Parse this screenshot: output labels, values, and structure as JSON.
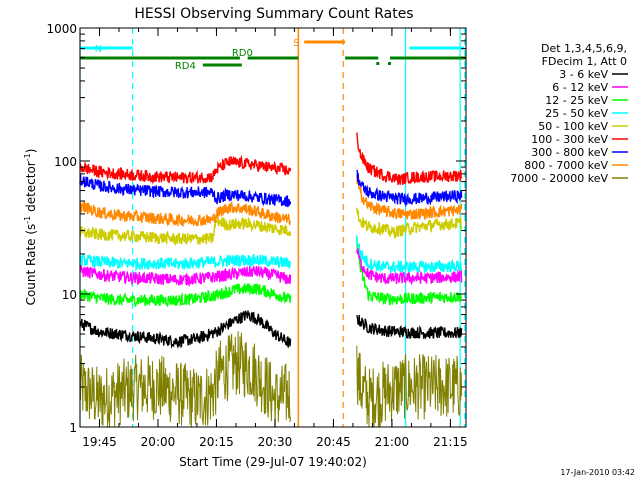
{
  "chart_data": {
    "type": "line",
    "title": "HESSI Observing Summary Count Rates",
    "xlabel": "Start Time (29-Jul-07 19:40:02)",
    "ylabel_main": "Count Rate (s",
    "ylabel_sup1": "-1",
    "ylabel_mid": " detector",
    "ylabel_sup2": "-1",
    "ylabel_end": ")",
    "y_scale": "log",
    "ylim": [
      1,
      1000
    ],
    "xlim_minutes": [
      0,
      99
    ],
    "x_ticks": [
      {
        "m": 5,
        "label": "19:45"
      },
      {
        "m": 20,
        "label": "20:00"
      },
      {
        "m": 35,
        "label": "20:15"
      },
      {
        "m": 50,
        "label": "20:30"
      },
      {
        "m": 65,
        "label": "20:45"
      },
      {
        "m": 80,
        "label": "21:00"
      },
      {
        "m": 95,
        "label": "21:15"
      }
    ],
    "y_ticks": [
      {
        "v": 1,
        "label": "1"
      },
      {
        "v": 10,
        "label": "10"
      },
      {
        "v": 100,
        "label": "100"
      },
      {
        "v": 1000,
        "label": "1000"
      }
    ],
    "legend": {
      "placement": "right",
      "header": [
        "Det 1,3,4,5,6,9,",
        "FDecim 1, Att 0"
      ]
    },
    "series": [
      {
        "name": "3 - 6 keV",
        "color": "#000000",
        "seg1": [
          [
            0,
            6
          ],
          [
            5,
            5.2
          ],
          [
            10,
            5
          ],
          [
            15,
            4.8
          ],
          [
            20,
            4.6
          ],
          [
            25,
            4.4
          ],
          [
            30,
            4.6
          ],
          [
            35,
            5.2
          ],
          [
            40,
            6.4
          ],
          [
            43,
            7
          ],
          [
            46,
            6.4
          ],
          [
            50,
            5
          ],
          [
            54,
            4.2
          ]
        ],
        "seg2": [
          [
            71,
            6.5
          ],
          [
            74,
            5.6
          ],
          [
            78,
            5.3
          ],
          [
            82,
            5.2
          ],
          [
            88,
            5.1
          ],
          [
            94,
            5.1
          ],
          [
            98,
            5.1
          ]
        ]
      },
      {
        "name": "6 - 12 keV",
        "color": "#ff00ff",
        "seg1": [
          [
            0,
            15
          ],
          [
            5,
            14
          ],
          [
            10,
            13.5
          ],
          [
            15,
            13.2
          ],
          [
            20,
            13
          ],
          [
            25,
            12.8
          ],
          [
            30,
            13
          ],
          [
            35,
            13.5
          ],
          [
            40,
            14.2
          ],
          [
            45,
            14.8
          ],
          [
            50,
            13.8
          ],
          [
            54,
            12.8
          ]
        ],
        "seg2": [
          [
            71,
            22
          ],
          [
            72,
            17
          ],
          [
            74,
            14
          ],
          [
            78,
            13
          ],
          [
            84,
            13.2
          ],
          [
            90,
            13.2
          ],
          [
            98,
            13.5
          ]
        ]
      },
      {
        "name": "12 - 25 keV",
        "color": "#00ff00",
        "seg1": [
          [
            0,
            10
          ],
          [
            5,
            9.3
          ],
          [
            10,
            9
          ],
          [
            15,
            9
          ],
          [
            20,
            9
          ],
          [
            25,
            9
          ],
          [
            30,
            9.2
          ],
          [
            35,
            9.8
          ],
          [
            40,
            10.8
          ],
          [
            45,
            11
          ],
          [
            50,
            10
          ],
          [
            54,
            9
          ]
        ],
        "seg2": [
          [
            71,
            25
          ],
          [
            72,
            15
          ],
          [
            74,
            9.8
          ],
          [
            78,
            9.2
          ],
          [
            84,
            9.2
          ],
          [
            90,
            9.4
          ],
          [
            98,
            9.6
          ]
        ]
      },
      {
        "name": "25 - 50 keV",
        "color": "#00ffff",
        "seg1": [
          [
            0,
            18
          ],
          [
            5,
            17.5
          ],
          [
            10,
            17
          ],
          [
            15,
            17
          ],
          [
            20,
            17
          ],
          [
            25,
            16.8
          ],
          [
            30,
            17.2
          ],
          [
            35,
            17.5
          ],
          [
            40,
            18
          ],
          [
            45,
            18
          ],
          [
            50,
            17.5
          ],
          [
            54,
            17
          ]
        ],
        "seg2": [
          [
            71,
            26
          ],
          [
            72,
            20
          ],
          [
            74,
            17
          ],
          [
            78,
            16
          ],
          [
            84,
            16
          ],
          [
            90,
            16
          ],
          [
            98,
            16.2
          ]
        ]
      },
      {
        "name": "50 - 100 keV",
        "color": "#cccc00",
        "seg1": [
          [
            0,
            29
          ],
          [
            5,
            28
          ],
          [
            10,
            27.5
          ],
          [
            15,
            27
          ],
          [
            20,
            26.5
          ],
          [
            25,
            26
          ],
          [
            30,
            26
          ],
          [
            34,
            26
          ],
          [
            35,
            36
          ],
          [
            38,
            33
          ],
          [
            42,
            34
          ],
          [
            45,
            33
          ],
          [
            50,
            31
          ],
          [
            54,
            30
          ]
        ],
        "seg2": [
          [
            71,
            42
          ],
          [
            72,
            35
          ],
          [
            74,
            32
          ],
          [
            78,
            31
          ],
          [
            80,
            29
          ],
          [
            82,
            30
          ],
          [
            84,
            31
          ],
          [
            90,
            33
          ],
          [
            98,
            34
          ]
        ]
      },
      {
        "name": "100 - 300 keV",
        "color": "#ff0000",
        "seg1": [
          [
            0,
            90
          ],
          [
            5,
            83
          ],
          [
            10,
            80
          ],
          [
            15,
            78
          ],
          [
            20,
            76
          ],
          [
            25,
            75
          ],
          [
            30,
            75
          ],
          [
            34,
            76
          ],
          [
            35,
            86
          ],
          [
            38,
            98
          ],
          [
            42,
            96
          ],
          [
            46,
            92
          ],
          [
            50,
            88
          ],
          [
            54,
            84
          ]
        ],
        "seg2": [
          [
            71,
            150
          ],
          [
            72,
            110
          ],
          [
            74,
            88
          ],
          [
            78,
            78
          ],
          [
            80,
            76
          ],
          [
            82,
            72
          ],
          [
            84,
            75
          ],
          [
            88,
            76
          ],
          [
            94,
            77
          ],
          [
            98,
            78
          ]
        ]
      },
      {
        "name": "300 - 800 keV",
        "color": "#0000ff",
        "seg1": [
          [
            0,
            72
          ],
          [
            5,
            65
          ],
          [
            10,
            62
          ],
          [
            15,
            60
          ],
          [
            20,
            59
          ],
          [
            25,
            58
          ],
          [
            30,
            58
          ],
          [
            34,
            58
          ],
          [
            35,
            52
          ],
          [
            38,
            56
          ],
          [
            42,
            55
          ],
          [
            46,
            53
          ],
          [
            50,
            51
          ],
          [
            54,
            50
          ]
        ],
        "seg2": [
          [
            71,
            80
          ],
          [
            72,
            66
          ],
          [
            74,
            58
          ],
          [
            78,
            54
          ],
          [
            82,
            52
          ],
          [
            86,
            52
          ],
          [
            90,
            53
          ],
          [
            94,
            54
          ],
          [
            98,
            55
          ]
        ]
      },
      {
        "name": "800 - 7000 keV",
        "color": "#ff8800",
        "seg1": [
          [
            0,
            46
          ],
          [
            5,
            41
          ],
          [
            10,
            39
          ],
          [
            15,
            38
          ],
          [
            20,
            37
          ],
          [
            25,
            36
          ],
          [
            30,
            36
          ],
          [
            34,
            36
          ],
          [
            35,
            40
          ],
          [
            38,
            45
          ],
          [
            42,
            44
          ],
          [
            46,
            41
          ],
          [
            50,
            38
          ],
          [
            54,
            36
          ]
        ],
        "seg2": [
          [
            71,
            72
          ],
          [
            72,
            56
          ],
          [
            74,
            46
          ],
          [
            78,
            42
          ],
          [
            82,
            40
          ],
          [
            86,
            40
          ],
          [
            90,
            41
          ],
          [
            94,
            42
          ],
          [
            98,
            43
          ]
        ]
      },
      {
        "name": "7000 - 20000 keV",
        "color": "#808000",
        "seg1": [
          [
            0,
            2
          ],
          [
            5,
            1.6
          ],
          [
            10,
            1.8
          ],
          [
            15,
            2
          ],
          [
            20,
            2
          ],
          [
            25,
            1.8
          ],
          [
            30,
            1.6
          ],
          [
            34,
            1.8
          ],
          [
            36,
            2.6
          ],
          [
            40,
            3
          ],
          [
            44,
            2.8
          ],
          [
            48,
            2
          ],
          [
            50,
            1.6
          ],
          [
            54,
            1.8
          ]
        ],
        "seg2": [
          [
            71,
            2.8
          ],
          [
            72,
            2
          ],
          [
            74,
            1.6
          ],
          [
            78,
            1.8
          ],
          [
            82,
            2
          ],
          [
            86,
            2
          ],
          [
            90,
            2
          ],
          [
            94,
            2
          ],
          [
            98,
            2
          ]
        ]
      }
    ],
    "gap_minutes": [
      54,
      71
    ],
    "annotations": {
      "N_label": "N",
      "S_label": "S",
      "RD0_label": "RD0",
      "RD4_label": "RD4"
    },
    "markers": {
      "cyan_solid_minutes": [
        0,
        83.5,
        97.5
      ],
      "cyan_dashed_minutes": [
        13.5,
        98.7
      ],
      "orange_solid_minutes": [
        56
      ],
      "orange_dashed_minutes": [
        67.5
      ],
      "N_bars_minutes": [
        [
          0,
          13.5
        ],
        [
          84.5,
          98.5
        ]
      ],
      "S_bar_minutes": [
        57.5,
        68
      ],
      "RD0_bars_minutes": [
        [
          0,
          41
        ],
        [
          43,
          56
        ],
        [
          68,
          76.5
        ],
        [
          79.5,
          99
        ]
      ],
      "RD4_bar_minutes": [
        31.5,
        41.5
      ],
      "gap_tick_minutes": [
        76.5,
        79.5
      ]
    },
    "colors": {
      "cyan": "#00ffff",
      "orange": "#ff8800",
      "green": "#008000"
    }
  },
  "footer": {
    "timestamp": "17-Jan-2010 03:42"
  }
}
